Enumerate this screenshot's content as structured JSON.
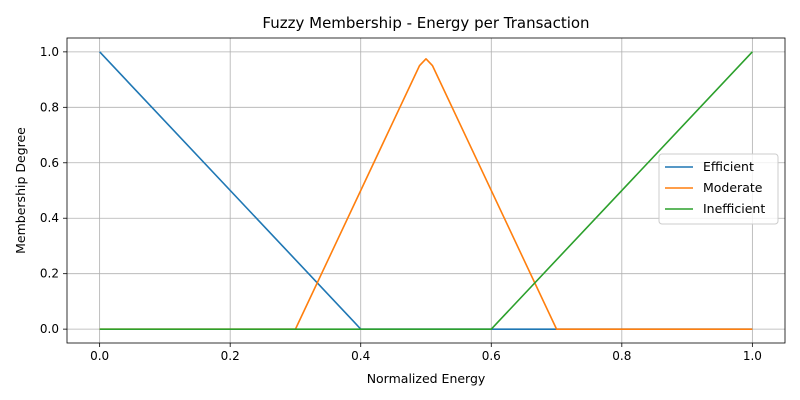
{
  "chart_data": {
    "type": "line",
    "title": "Fuzzy Membership - Energy per Transaction",
    "xlabel": "Normalized Energy",
    "ylabel": "Membership Degree",
    "xlim": [
      -0.05,
      1.05
    ],
    "ylim": [
      -0.05,
      1.05
    ],
    "xticks": [
      "0.0",
      "0.2",
      "0.4",
      "0.6",
      "0.8",
      "1.0"
    ],
    "yticks": [
      "0.0",
      "0.2",
      "0.4",
      "0.6",
      "0.8",
      "1.0"
    ],
    "grid": true,
    "legend_position": "center-right",
    "series": [
      {
        "name": "Efficient",
        "color": "#1f77b4",
        "x": [
          0.0,
          0.39,
          0.4,
          0.41,
          1.0
        ],
        "y": [
          1.0,
          0.0256,
          0.0,
          0.0,
          0.0
        ]
      },
      {
        "name": "Moderate",
        "color": "#ff7f0e",
        "x": [
          0.0,
          0.29,
          0.3,
          0.31,
          0.49,
          0.5,
          0.51,
          0.69,
          0.7,
          0.71,
          1.0
        ],
        "y": [
          0.0,
          0.0,
          0.0,
          0.05,
          0.95,
          0.975,
          0.95,
          0.05,
          0.0,
          0.0,
          0.0
        ]
      },
      {
        "name": "Inefficient",
        "color": "#2ca02c",
        "x": [
          0.0,
          0.59,
          0.6,
          0.61,
          1.0
        ],
        "y": [
          0.0,
          0.0,
          0.0,
          0.025,
          1.0
        ]
      }
    ]
  }
}
